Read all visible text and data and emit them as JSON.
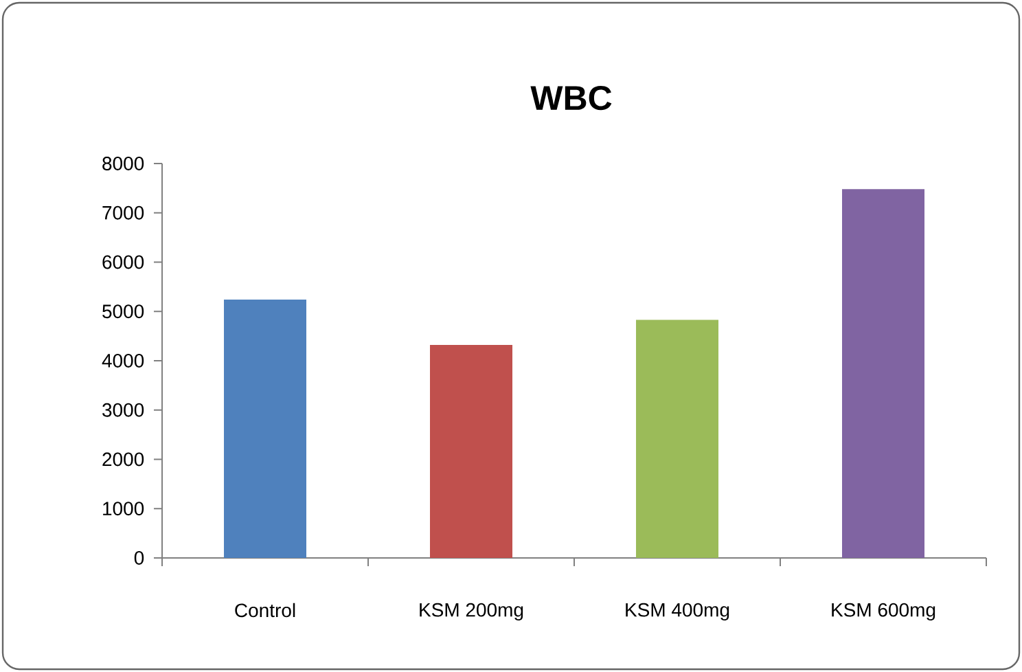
{
  "chart_data": {
    "type": "bar",
    "title": "WBC",
    "categories": [
      "Control",
      "KSM 200mg",
      "KSM 400mg",
      "KSM 600mg"
    ],
    "values": [
      5240,
      4320,
      4830,
      7480
    ],
    "colors": [
      "#4f81bd",
      "#c0504d",
      "#9bbb59",
      "#8064a2"
    ],
    "ylim": [
      0,
      8000
    ],
    "yticks": [
      0,
      1000,
      2000,
      3000,
      4000,
      5000,
      6000,
      7000,
      8000
    ]
  }
}
